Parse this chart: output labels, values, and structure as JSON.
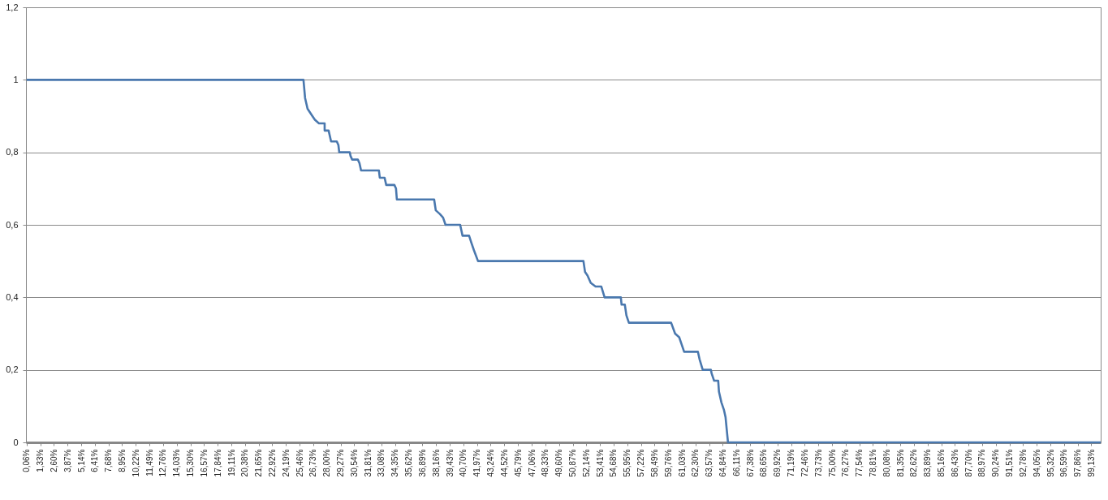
{
  "chart_data": {
    "type": "line",
    "grid": "y",
    "x": [
      0.06,
      25.82,
      25.97,
      26.2,
      26.65,
      26.88,
      27.26,
      27.79,
      27.79,
      28.16,
      28.39,
      28.92,
      29.07,
      29.15,
      30.13,
      30.2,
      30.35,
      30.88,
      31.03,
      31.18,
      32.84,
      32.92,
      33.37,
      33.52,
      34.28,
      34.43,
      34.51,
      37.98,
      38.13,
      38.51,
      38.81,
      39.04,
      40.4,
      40.62,
      41.23,
      41.45,
      41.68,
      42.06,
      51.87,
      52.02,
      52.25,
      52.55,
      53.0,
      53.53,
      53.84,
      55.35,
      55.42,
      55.72,
      55.87,
      56.1,
      60.03,
      60.4,
      60.78,
      61.01,
      61.24,
      62.52,
      62.67,
      62.97,
      63.73,
      63.8,
      64.03,
      64.41,
      64.48,
      64.71,
      64.94,
      65.09,
      65.32,
      100
    ],
    "series": [
      {
        "color": "#4a78ae",
        "values": [
          1,
          1,
          0.95,
          0.92,
          0.9,
          0.89,
          0.88,
          0.88,
          0.86,
          0.86,
          0.83,
          0.83,
          0.82,
          0.8,
          0.8,
          0.79,
          0.78,
          0.78,
          0.77,
          0.75,
          0.75,
          0.73,
          0.73,
          0.71,
          0.71,
          0.7,
          0.67,
          0.67,
          0.64,
          0.63,
          0.62,
          0.6,
          0.6,
          0.57,
          0.57,
          0.55,
          0.53,
          0.5,
          0.5,
          0.47,
          0.46,
          0.44,
          0.43,
          0.43,
          0.4,
          0.4,
          0.38,
          0.38,
          0.35,
          0.33,
          0.33,
          0.3,
          0.29,
          0.27,
          0.25,
          0.25,
          0.23,
          0.2,
          0.2,
          0.19,
          0.17,
          0.17,
          0.14,
          0.11,
          0.09,
          0.07,
          0,
          0
        ]
      }
    ],
    "xlim": [
      0,
      100
    ],
    "xticks": [
      {
        "value": 0.06,
        "label": "0,06%"
      },
      {
        "value": 1.33,
        "label": "1,33%"
      },
      {
        "value": 2.6,
        "label": "2,60%"
      },
      {
        "value": 3.87,
        "label": "3,87%"
      },
      {
        "value": 5.14,
        "label": "5,14%"
      },
      {
        "value": 6.41,
        "label": "6,41%"
      },
      {
        "value": 7.68,
        "label": "7,68%"
      },
      {
        "value": 8.95,
        "label": "8,95%"
      },
      {
        "value": 10.22,
        "label": "10,22%"
      },
      {
        "value": 11.49,
        "label": "11,49%"
      },
      {
        "value": 12.76,
        "label": "12,76%"
      },
      {
        "value": 14.03,
        "label": "14,03%"
      },
      {
        "value": 15.3,
        "label": "15,30%"
      },
      {
        "value": 16.57,
        "label": "16,57%"
      },
      {
        "value": 17.84,
        "label": "17,84%"
      },
      {
        "value": 19.11,
        "label": "19,11%"
      },
      {
        "value": 20.38,
        "label": "20,38%"
      },
      {
        "value": 21.65,
        "label": "21,65%"
      },
      {
        "value": 22.92,
        "label": "22,92%"
      },
      {
        "value": 24.19,
        "label": "24,19%"
      },
      {
        "value": 25.46,
        "label": "25,46%"
      },
      {
        "value": 26.73,
        "label": "26,73%"
      },
      {
        "value": 28.0,
        "label": "28,00%"
      },
      {
        "value": 29.27,
        "label": "29,27%"
      },
      {
        "value": 30.54,
        "label": "30,54%"
      },
      {
        "value": 31.81,
        "label": "31,81%"
      },
      {
        "value": 33.08,
        "label": "33,08%"
      },
      {
        "value": 34.35,
        "label": "34,35%"
      },
      {
        "value": 35.62,
        "label": "35,62%"
      },
      {
        "value": 36.89,
        "label": "36,89%"
      },
      {
        "value": 38.16,
        "label": "38,16%"
      },
      {
        "value": 39.43,
        "label": "39,43%"
      },
      {
        "value": 40.7,
        "label": "40,70%"
      },
      {
        "value": 41.97,
        "label": "41,97%"
      },
      {
        "value": 43.24,
        "label": "43,24%"
      },
      {
        "value": 44.52,
        "label": "44,52%"
      },
      {
        "value": 45.79,
        "label": "45,79%"
      },
      {
        "value": 47.06,
        "label": "47,06%"
      },
      {
        "value": 48.33,
        "label": "48,33%"
      },
      {
        "value": 49.6,
        "label": "49,60%"
      },
      {
        "value": 50.87,
        "label": "50,87%"
      },
      {
        "value": 52.14,
        "label": "52,14%"
      },
      {
        "value": 53.41,
        "label": "53,41%"
      },
      {
        "value": 54.68,
        "label": "54,68%"
      },
      {
        "value": 55.95,
        "label": "55,95%"
      },
      {
        "value": 57.22,
        "label": "57,22%"
      },
      {
        "value": 58.49,
        "label": "58,49%"
      },
      {
        "value": 59.76,
        "label": "59,76%"
      },
      {
        "value": 61.03,
        "label": "61,03%"
      },
      {
        "value": 62.3,
        "label": "62,30%"
      },
      {
        "value": 63.57,
        "label": "63,57%"
      },
      {
        "value": 64.84,
        "label": "64,84%"
      },
      {
        "value": 66.11,
        "label": "66,11%"
      },
      {
        "value": 67.38,
        "label": "67,38%"
      },
      {
        "value": 68.65,
        "label": "68,65%"
      },
      {
        "value": 69.92,
        "label": "69,92%"
      },
      {
        "value": 71.19,
        "label": "71,19%"
      },
      {
        "value": 72.46,
        "label": "72,46%"
      },
      {
        "value": 73.73,
        "label": "73,73%"
      },
      {
        "value": 75.0,
        "label": "75,00%"
      },
      {
        "value": 76.27,
        "label": "76,27%"
      },
      {
        "value": 77.54,
        "label": "77,54%"
      },
      {
        "value": 78.81,
        "label": "78,81%"
      },
      {
        "value": 80.08,
        "label": "80,08%"
      },
      {
        "value": 81.35,
        "label": "81,35%"
      },
      {
        "value": 82.62,
        "label": "82,62%"
      },
      {
        "value": 83.89,
        "label": "83,89%"
      },
      {
        "value": 85.16,
        "label": "85,16%"
      },
      {
        "value": 86.43,
        "label": "86,43%"
      },
      {
        "value": 87.7,
        "label": "87,70%"
      },
      {
        "value": 88.97,
        "label": "88,97%"
      },
      {
        "value": 90.24,
        "label": "90,24%"
      },
      {
        "value": 91.51,
        "label": "91,51%"
      },
      {
        "value": 92.78,
        "label": "92,78%"
      },
      {
        "value": 94.05,
        "label": "94,05%"
      },
      {
        "value": 95.32,
        "label": "95,32%"
      },
      {
        "value": 96.59,
        "label": "96,59%"
      },
      {
        "value": 97.86,
        "label": "97,86%"
      },
      {
        "value": 99.13,
        "label": "99,13%"
      }
    ],
    "ylim": [
      0,
      1.2
    ],
    "yticks": [
      0,
      {
        "value": 0.2,
        "label": "0,2"
      },
      {
        "value": 0.4,
        "label": "0,4"
      },
      {
        "value": 0.6,
        "label": "0,6"
      },
      {
        "value": 0.8,
        "label": "0,8"
      },
      1,
      {
        "value": 1.2,
        "label": "1,2"
      }
    ]
  }
}
